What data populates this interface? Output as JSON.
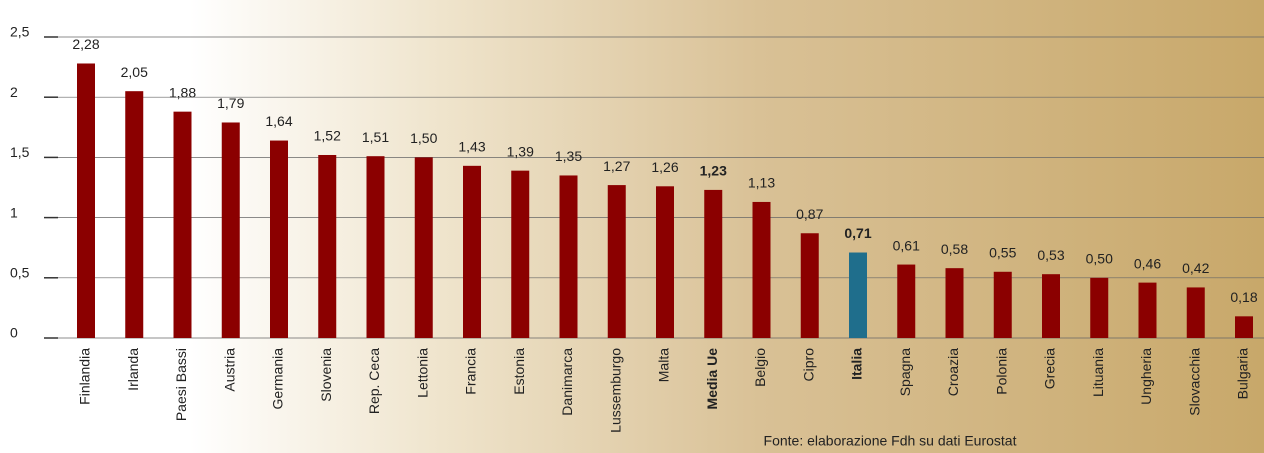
{
  "chart_data": {
    "type": "bar",
    "categories": [
      "Finlandia",
      "Irlanda",
      "Paesi Bassi",
      "Austria",
      "Germania",
      "Slovenia",
      "Rep. Ceca",
      "Lettonia",
      "Francia",
      "Estonia",
      "Danimarca",
      "Lussemburgo",
      "Malta",
      "Media Ue",
      "Belgio",
      "Cipro",
      "Italia",
      "Spagna",
      "Croazia",
      "Polonia",
      "Grecia",
      "Lituania",
      "Ungheria",
      "Slovacchia",
      "Bulgaria"
    ],
    "values": [
      2.28,
      2.05,
      1.88,
      1.79,
      1.64,
      1.52,
      1.51,
      1.5,
      1.43,
      1.39,
      1.35,
      1.27,
      1.26,
      1.23,
      1.13,
      0.87,
      0.71,
      0.61,
      0.58,
      0.55,
      0.53,
      0.5,
      0.46,
      0.42,
      0.18
    ],
    "value_labels": [
      "2,28",
      "2,05",
      "1,88",
      "1,79",
      "1,64",
      "1,52",
      "1,51",
      "1,50",
      "1,43",
      "1,39",
      "1,35",
      "1,27",
      "1,26",
      "1,23",
      "1,13",
      "0,87",
      "0,71",
      "0,61",
      "0,58",
      "0,55",
      "0,53",
      "0,50",
      "0,46",
      "0,42",
      "0,18"
    ],
    "colors": [
      "#8b0000",
      "#8b0000",
      "#8b0000",
      "#8b0000",
      "#8b0000",
      "#8b0000",
      "#8b0000",
      "#8b0000",
      "#8b0000",
      "#8b0000",
      "#8b0000",
      "#8b0000",
      "#8b0000",
      "#8b0000",
      "#8b0000",
      "#8b0000",
      "#1f6e8c",
      "#8b0000",
      "#8b0000",
      "#8b0000",
      "#8b0000",
      "#8b0000",
      "#8b0000",
      "#8b0000",
      "#8b0000"
    ],
    "bold": [
      false,
      false,
      false,
      false,
      false,
      false,
      false,
      false,
      false,
      false,
      false,
      false,
      false,
      true,
      false,
      false,
      true,
      false,
      false,
      false,
      false,
      false,
      false,
      false,
      false
    ],
    "ylim": [
      0,
      2.5
    ],
    "yticks": [
      0,
      {
        "value": 0.5,
        "label": "0,5"
      },
      1,
      {
        "value": 1.5,
        "label": "1,5"
      },
      2,
      {
        "value": 2.5,
        "label": "2,5"
      }
    ],
    "grid": true,
    "source": "Fonte: elaborazione Fdh su dati Eurostat"
  }
}
